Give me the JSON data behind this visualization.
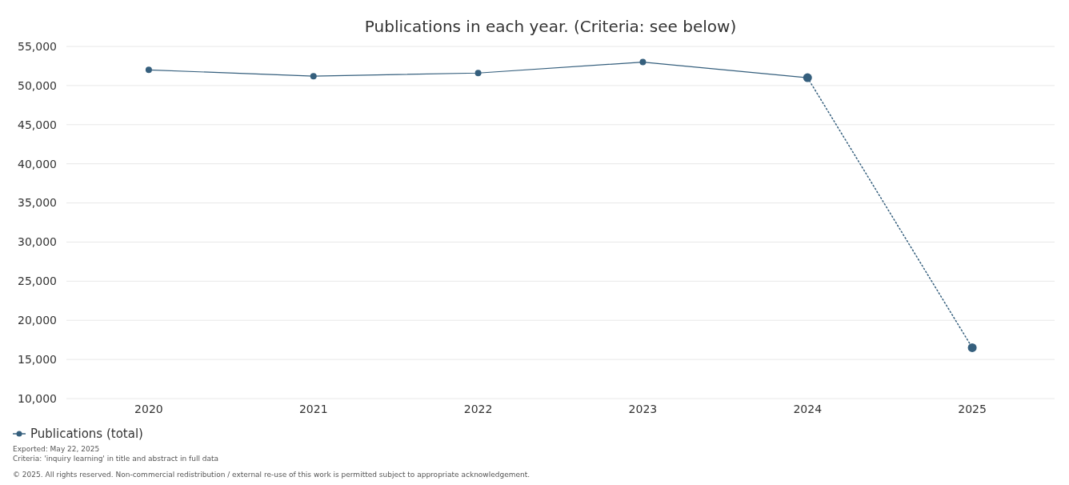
{
  "chart_data": {
    "type": "line",
    "title": "Publications in each year. (Criteria: see below)",
    "categories": [
      "2020",
      "2021",
      "2022",
      "2023",
      "2024",
      "2025"
    ],
    "series": [
      {
        "name": "Publications (total)",
        "color": "#355f7d",
        "values": [
          52000,
          51200,
          51600,
          53000,
          51000,
          null
        ],
        "marker": "circle",
        "line_style": "solid"
      },
      {
        "color": "#355f7d",
        "values": [
          null,
          null,
          null,
          null,
          51000,
          16500
        ],
        "marker": "circle",
        "line_style": "dotted"
      }
    ],
    "ylim": [
      10000,
      55000
    ],
    "yticks": [
      {
        "value": 10000,
        "label": "10,000"
      },
      {
        "value": 15000,
        "label": "15,000"
      },
      {
        "value": 20000,
        "label": "20,000"
      },
      {
        "value": 25000,
        "label": "25,000"
      },
      {
        "value": 30000,
        "label": "30,000"
      },
      {
        "value": 35000,
        "label": "35,000"
      },
      {
        "value": 40000,
        "label": "40,000"
      },
      {
        "value": 45000,
        "label": "45,000"
      },
      {
        "value": 50000,
        "label": "50,000"
      },
      {
        "value": 55000,
        "label": "55,000"
      }
    ],
    "grid": "y",
    "legend": "bottom left",
    "annotations": [
      "Exported: May 22, 2025",
      "Criteria: 'inquiry learning' in title and abstract in full data",
      "© 2025. All rights reserved. Non-commercial redistribution / external re-use of this work is permitted subject to appropriate acknowledgement."
    ]
  }
}
